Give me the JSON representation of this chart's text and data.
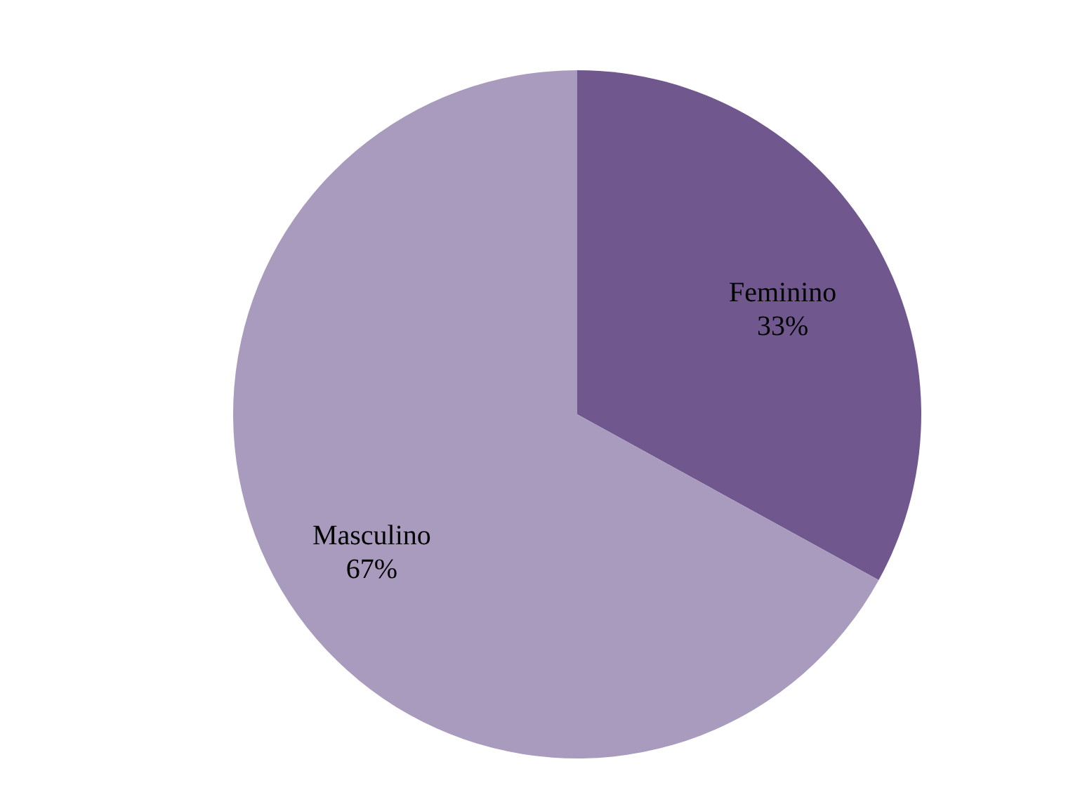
{
  "chart_data": {
    "type": "pie",
    "categories": [
      "Feminino",
      "Masculino"
    ],
    "values": [
      33,
      67
    ],
    "colors": [
      "#70588f",
      "#a99bbd"
    ],
    "value_labels": [
      "33%",
      "67%"
    ]
  }
}
